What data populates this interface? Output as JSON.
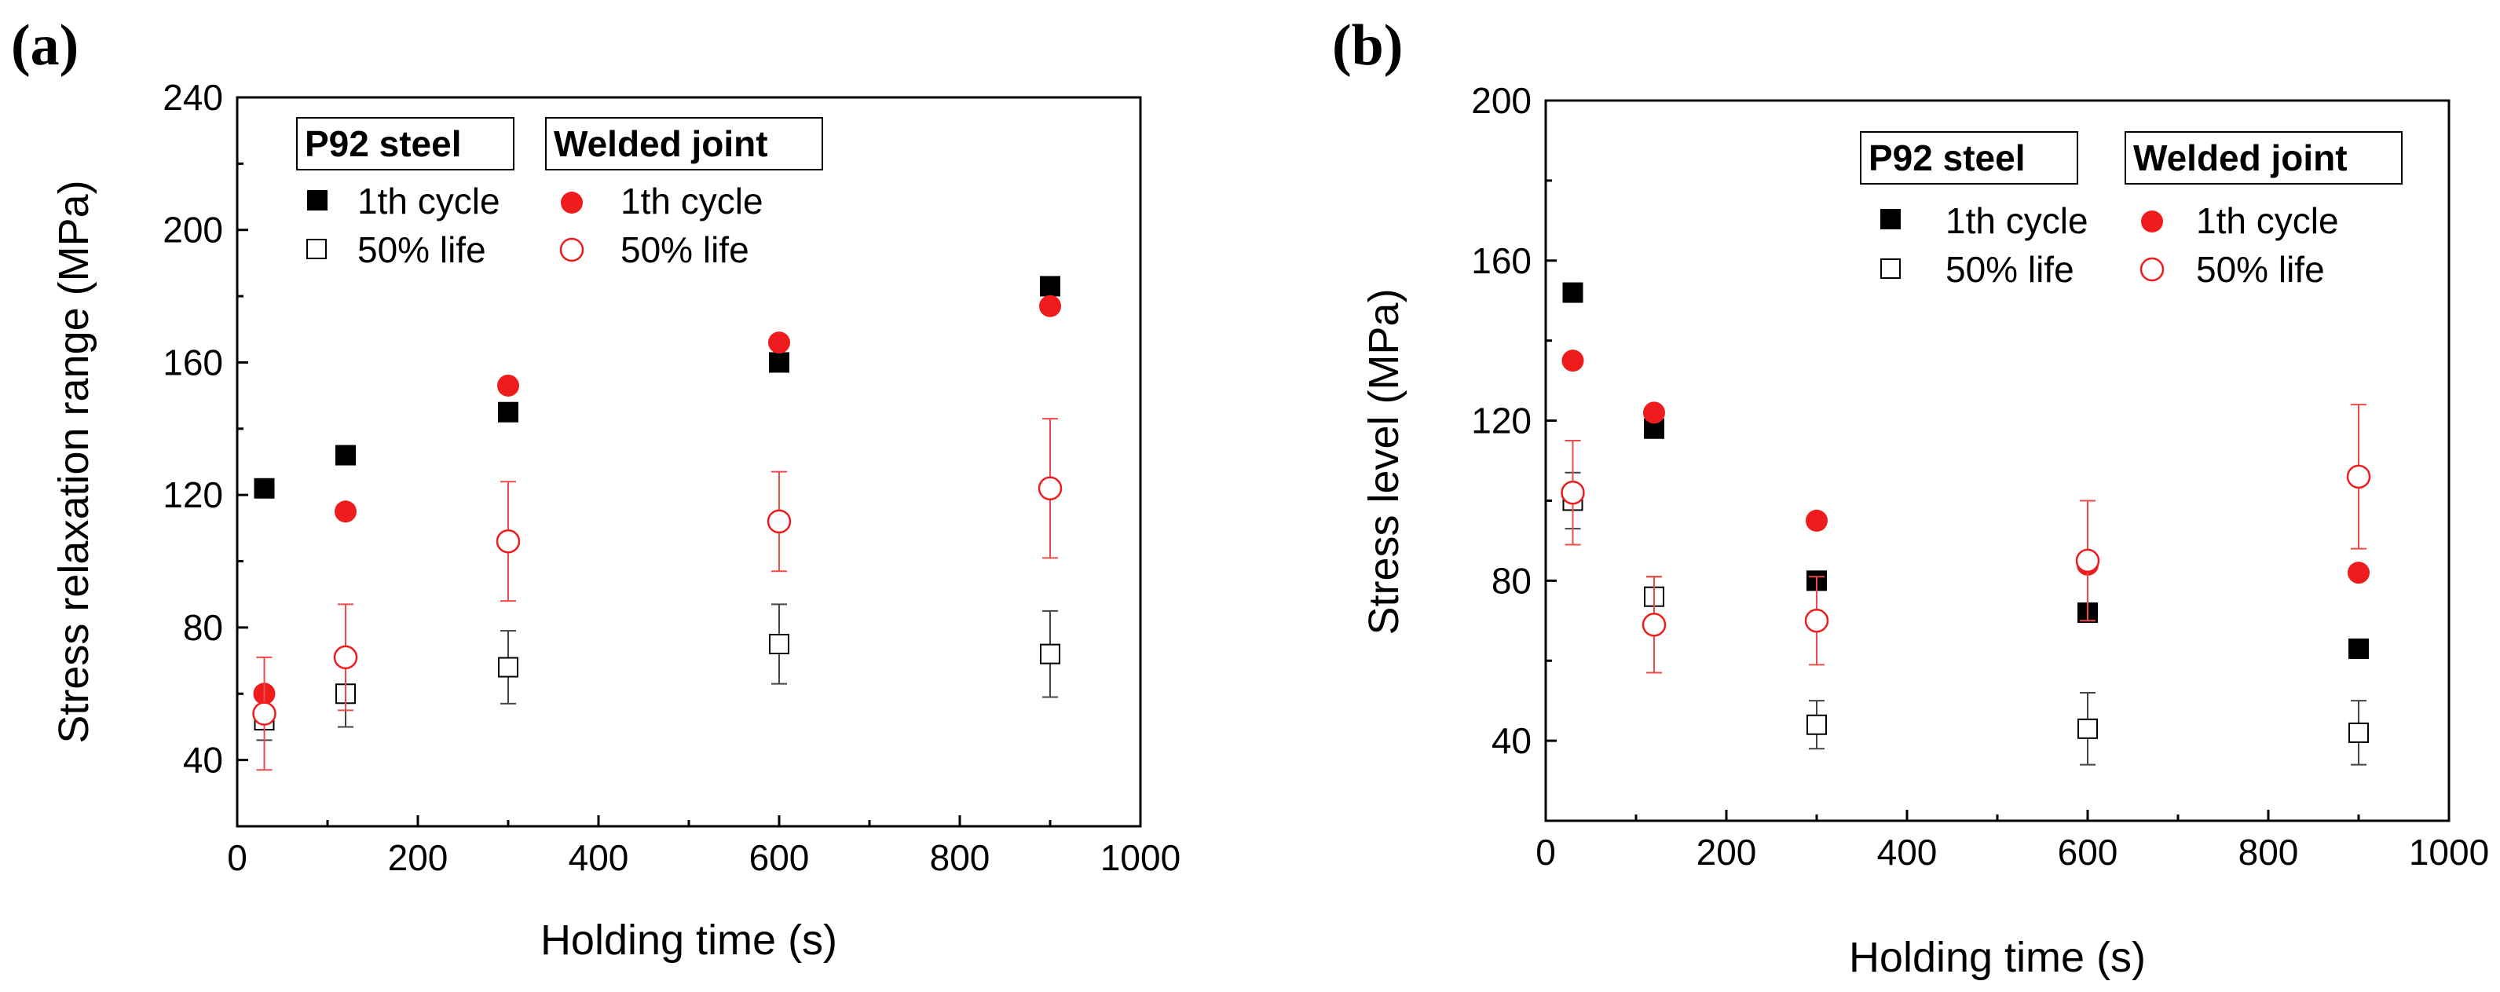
{
  "figure": {
    "panels": [
      {
        "label": "(a)",
        "xlabel": "Holding time (s)",
        "ylabel": "Stress relaxation range (MPa)",
        "legend": {
          "group1_header": "P92 steel",
          "group2_header": "Welded joint",
          "item_labels": [
            "1th cycle",
            "50% life",
            "1th cycle",
            "50% life"
          ]
        }
      },
      {
        "label": "(b)",
        "xlabel": "Holding time (s)",
        "ylabel": "Stress level (MPa)",
        "legend": {
          "group1_header": "P92 steel",
          "group2_header": "Welded joint",
          "item_labels": [
            "1th cycle",
            "50% life",
            "1th cycle",
            "50% life"
          ]
        }
      }
    ]
  },
  "chart_data": [
    {
      "type": "scatter",
      "title": "(a)",
      "xlabel": "Holding time (s)",
      "ylabel": "Stress relaxation range (MPa)",
      "xlim": [
        0,
        1000
      ],
      "ylim": [
        20,
        240
      ],
      "xticks": [
        0,
        200,
        400,
        600,
        800,
        1000
      ],
      "yticks": [
        40,
        80,
        120,
        160,
        200,
        240
      ],
      "grid": false,
      "legend_position": "top-left",
      "series": [
        {
          "name": "P92 steel 1th cycle",
          "group": "P92 steel",
          "marker": "square",
          "filled": true,
          "color": "#000000",
          "x": [
            30,
            120,
            300,
            600,
            900
          ],
          "y": [
            122,
            132,
            145,
            160,
            183
          ]
        },
        {
          "name": "P92 steel 50% life",
          "group": "P92 steel",
          "marker": "square",
          "filled": false,
          "color": "#000000",
          "x": [
            30,
            120,
            300,
            600,
            900
          ],
          "y": [
            52,
            60,
            68,
            75,
            72
          ],
          "error": [
            6,
            10,
            11,
            12,
            13
          ]
        },
        {
          "name": "Welded joint 1th cycle",
          "group": "Welded joint",
          "marker": "circle",
          "filled": true,
          "color": "#ee1c1c",
          "x": [
            30,
            120,
            300,
            600,
            900
          ],
          "y": [
            60,
            115,
            153,
            166,
            177
          ]
        },
        {
          "name": "Welded joint 50% life",
          "group": "Welded joint",
          "marker": "circle",
          "filled": false,
          "color": "#ee1c1c",
          "x": [
            30,
            120,
            300,
            600,
            900
          ],
          "y": [
            54,
            71,
            106,
            112,
            122
          ],
          "error": [
            17,
            16,
            18,
            15,
            21
          ]
        }
      ]
    },
    {
      "type": "scatter",
      "title": "(b)",
      "xlabel": "Holding time (s)",
      "ylabel": "Stress level (MPa)",
      "xlim": [
        0,
        1000
      ],
      "ylim": [
        20,
        200
      ],
      "xticks": [
        0,
        200,
        400,
        600,
        800,
        1000
      ],
      "yticks": [
        40,
        80,
        120,
        160,
        200
      ],
      "grid": false,
      "legend_position": "top-right",
      "series": [
        {
          "name": "P92 steel 1th cycle",
          "group": "P92 steel",
          "marker": "square",
          "filled": true,
          "color": "#000000",
          "x": [
            30,
            120,
            300,
            600,
            900
          ],
          "y": [
            152,
            118,
            80,
            72,
            63
          ]
        },
        {
          "name": "P92 steel 50% life",
          "group": "P92 steel",
          "marker": "square",
          "filled": false,
          "color": "#000000",
          "x": [
            30,
            120,
            300,
            600,
            900
          ],
          "y": [
            100,
            76,
            44,
            43,
            42
          ],
          "error": [
            7,
            5,
            6,
            9,
            8
          ]
        },
        {
          "name": "Welded joint 1th cycle",
          "group": "Welded joint",
          "marker": "circle",
          "filled": true,
          "color": "#ee1c1c",
          "x": [
            30,
            120,
            300,
            600,
            900
          ],
          "y": [
            135,
            122,
            95,
            84,
            82
          ]
        },
        {
          "name": "Welded joint 50% life",
          "group": "Welded joint",
          "marker": "circle",
          "filled": false,
          "color": "#ee1c1c",
          "x": [
            30,
            120,
            300,
            600,
            900
          ],
          "y": [
            102,
            69,
            70,
            85,
            106
          ],
          "error": [
            13,
            12,
            11,
            15,
            18
          ]
        }
      ]
    }
  ]
}
